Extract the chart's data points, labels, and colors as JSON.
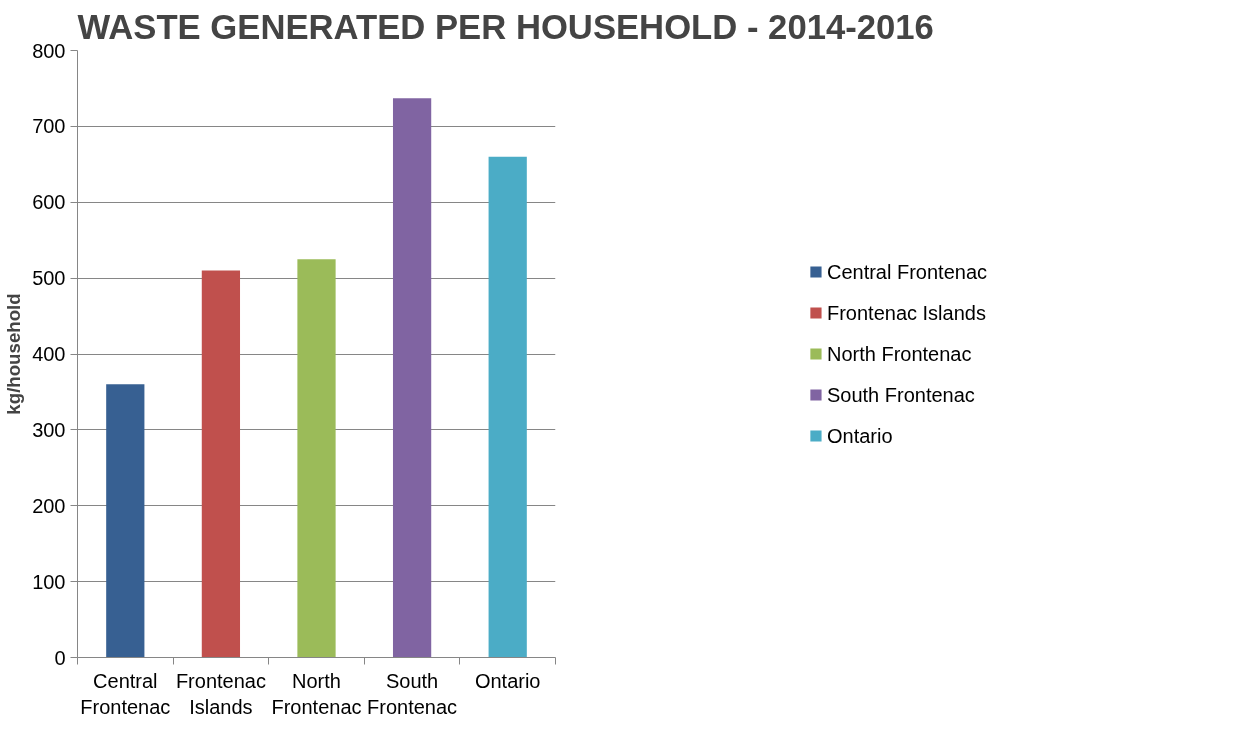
{
  "chart_data": {
    "type": "bar",
    "title": "WASTE GENERATED PER HOUSEHOLD - 2014-2016",
    "ylabel": "kg/household",
    "categories": [
      "Central Frontenac",
      "Frontenac Islands",
      "North Frontenac",
      "South Frontenac",
      "Ontario"
    ],
    "stacked": true,
    "series": [
      {
        "name": "Central Frontenac",
        "color": "#376092",
        "values": [
          360,
          null,
          null,
          null,
          null
        ]
      },
      {
        "name": "Frontenac Islands",
        "color": "#c0504d",
        "values": [
          null,
          510,
          null,
          null,
          null
        ]
      },
      {
        "name": "North Frontenac",
        "color": "#9bbb59",
        "values": [
          null,
          null,
          525,
          null,
          null
        ]
      },
      {
        "name": "South Frontenac",
        "color": "#8064a2",
        "values": [
          null,
          null,
          null,
          737,
          null
        ]
      },
      {
        "name": "Ontario",
        "color": "#4bacc6",
        "values": [
          null,
          null,
          null,
          null,
          660
        ]
      }
    ],
    "ylim": [
      0,
      800
    ],
    "yticks": [
      0,
      100,
      200,
      300,
      400,
      500,
      600,
      700,
      800
    ],
    "grid": "y",
    "legend": "right"
  }
}
